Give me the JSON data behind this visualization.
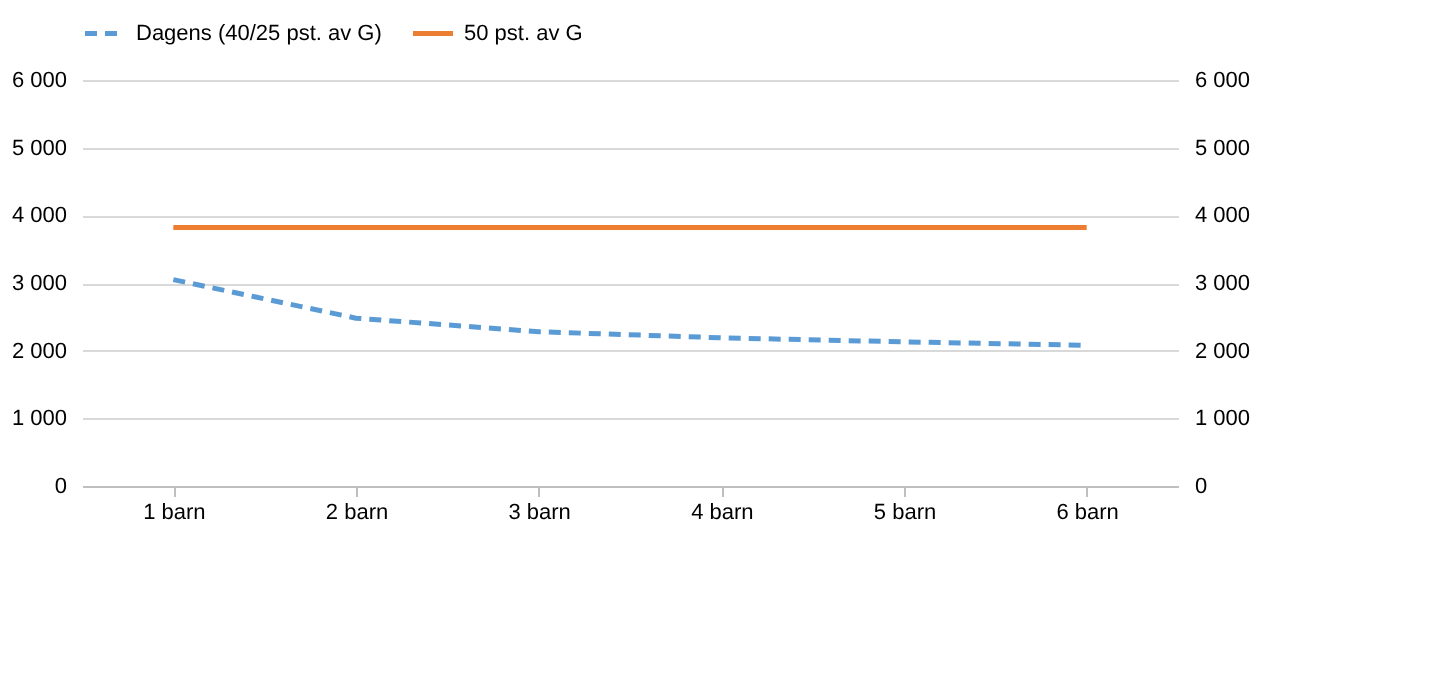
{
  "chart_data": {
    "type": "line",
    "categories": [
      "1 barn",
      "2 barn",
      "3 barn",
      "4 barn",
      "5 barn",
      "6 barn"
    ],
    "series": [
      {
        "name": "Dagens (40/25 pst. av G)",
        "color": "#5b9bd5",
        "line_style": "dashed",
        "values": [
          3050,
          2480,
          2280,
          2190,
          2130,
          2080
        ]
      },
      {
        "name": "50 pst. av G",
        "color": "#ed7d31",
        "line_style": "solid",
        "values": [
          3820,
          3820,
          3820,
          3820,
          3820,
          3820
        ]
      }
    ],
    "ylim": [
      0,
      6000
    ],
    "yticks": [
      0,
      {
        "value": 1000,
        "label": "1 000"
      },
      {
        "value": 2000,
        "label": "2 000"
      },
      {
        "value": 3000,
        "label": "3 000"
      },
      {
        "value": 4000,
        "label": "4 000"
      },
      {
        "value": 5000,
        "label": "5 000"
      },
      {
        "value": 6000,
        "label": "6 000"
      }
    ],
    "y2lim": [
      0,
      6000
    ],
    "y2ticks": [
      0,
      {
        "value": 1000,
        "label": "1 000"
      },
      {
        "value": 2000,
        "label": "2 000"
      },
      {
        "value": 3000,
        "label": "3 000"
      },
      {
        "value": 4000,
        "label": "4 000"
      },
      {
        "value": 5000,
        "label": "5 000"
      },
      {
        "value": 6000,
        "label": "6 000"
      }
    ],
    "grid": "y",
    "legend": "top",
    "marker": "none"
  }
}
